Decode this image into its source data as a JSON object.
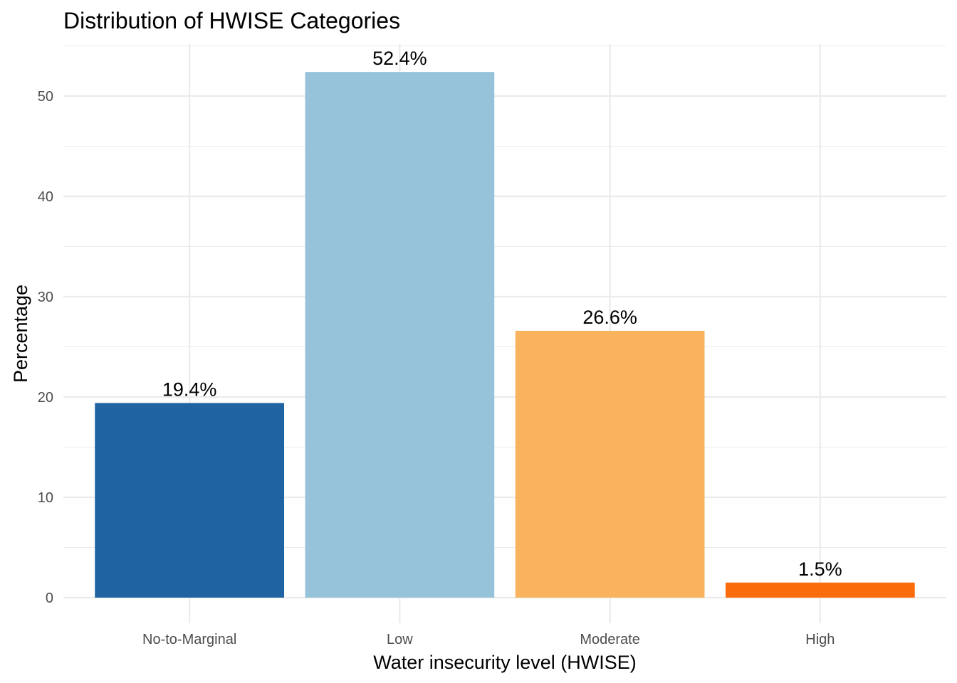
{
  "chart_data": {
    "type": "bar",
    "title": "Distribution of HWISE Categories",
    "xlabel": "Water insecurity level (HWISE)",
    "ylabel": "Percentage",
    "categories": [
      "No-to-Marginal",
      "Low",
      "Moderate",
      "High"
    ],
    "values": [
      19.4,
      52.4,
      26.6,
      1.5
    ],
    "data_labels": [
      "19.4%",
      "52.4%",
      "26.6%",
      "1.5%"
    ],
    "colors": [
      "#1f63a3",
      "#97c3da",
      "#f9b35f",
      "#fb6c0d"
    ],
    "ylim": [
      0,
      55
    ],
    "yticks": [
      0,
      10,
      20,
      30,
      40,
      50
    ],
    "grid": true,
    "legend": "none"
  }
}
